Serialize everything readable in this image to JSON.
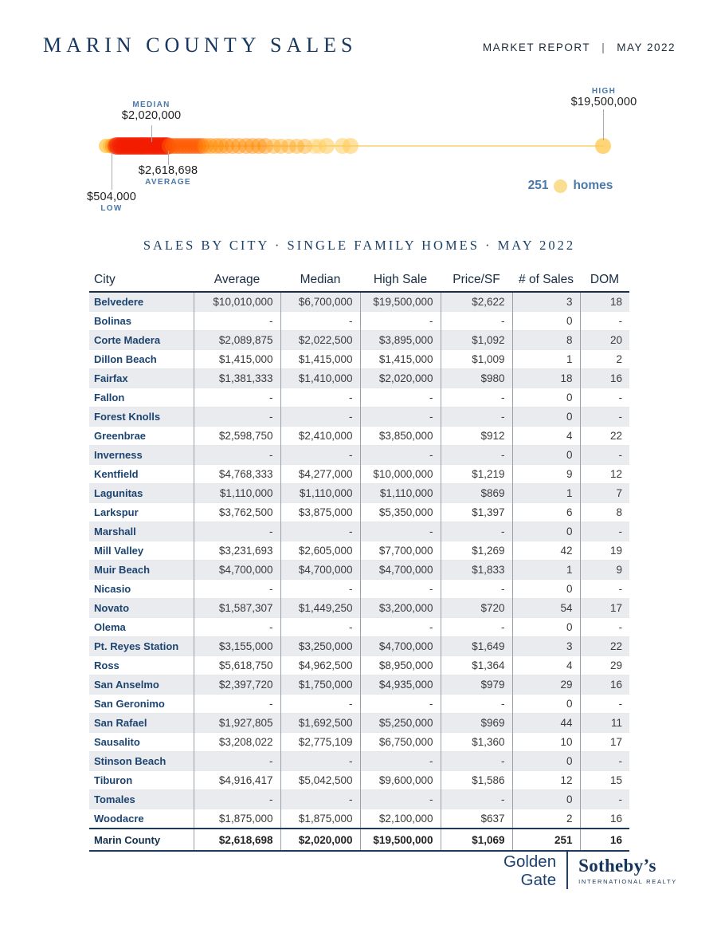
{
  "header": {
    "title": "MARIN COUNTY SALES",
    "report_label": "MARKET REPORT",
    "separator": "|",
    "period": "MAY 2022"
  },
  "chart_data": {
    "type": "strip",
    "x_min": 504000,
    "x_max": 19500000,
    "markers": {
      "median": {
        "label": "MEDIAN",
        "display": "$2,020,000",
        "value": 2020000
      },
      "average": {
        "label": "AVERAGE",
        "display": "$2,618,698",
        "value": 2618698
      },
      "low": {
        "label": "LOW",
        "display": "$504,000",
        "value": 504000
      },
      "high": {
        "label": "HIGH",
        "display": "$19,500,000",
        "value": 19500000
      }
    },
    "legend": {
      "count": "251",
      "label": "homes"
    },
    "dots": [
      [
        504000,
        "gold",
        0.8,
        9
      ],
      [
        650000,
        "amber",
        0.45,
        9
      ],
      [
        780000,
        "orange",
        0.5,
        10
      ],
      [
        900000,
        "red",
        0.5,
        11
      ],
      [
        975000,
        "red",
        0.5,
        11
      ],
      [
        1050000,
        "red",
        0.5,
        11
      ],
      [
        1125000,
        "red",
        0.5,
        11
      ],
      [
        1200000,
        "red",
        0.5,
        11
      ],
      [
        1275000,
        "red",
        0.5,
        11
      ],
      [
        1350000,
        "red",
        0.5,
        11
      ],
      [
        1425000,
        "red",
        0.5,
        11
      ],
      [
        1500000,
        "red",
        0.5,
        11
      ],
      [
        1575000,
        "red",
        0.5,
        11
      ],
      [
        1650000,
        "red",
        0.5,
        11
      ],
      [
        1725000,
        "red",
        0.5,
        11
      ],
      [
        1800000,
        "red",
        0.5,
        11
      ],
      [
        1875000,
        "red",
        0.5,
        11
      ],
      [
        1950000,
        "red",
        0.5,
        11
      ],
      [
        2025000,
        "red",
        0.5,
        11
      ],
      [
        2100000,
        "red",
        0.5,
        11
      ],
      [
        2175000,
        "red",
        0.5,
        11
      ],
      [
        2250000,
        "red",
        0.5,
        11
      ],
      [
        2325000,
        "red",
        0.5,
        11
      ],
      [
        2400000,
        "red",
        0.5,
        11
      ],
      [
        2475000,
        "red",
        0.5,
        11
      ],
      [
        2550000,
        "red",
        0.5,
        11
      ],
      [
        2625000,
        "red",
        0.5,
        11
      ],
      [
        2700000,
        "red",
        0.5,
        11
      ],
      [
        2775000,
        "red",
        0.5,
        11
      ],
      [
        2850000,
        "red",
        0.5,
        11
      ],
      [
        2950000,
        "orangered",
        0.5,
        10
      ],
      [
        3070000,
        "orangered",
        0.5,
        10
      ],
      [
        3190000,
        "orangered",
        0.5,
        10
      ],
      [
        3310000,
        "orangered",
        0.5,
        10
      ],
      [
        3430000,
        "orangered",
        0.5,
        10
      ],
      [
        3550000,
        "orangered",
        0.5,
        10
      ],
      [
        3670000,
        "orangered",
        0.5,
        10
      ],
      [
        3790000,
        "orangered",
        0.5,
        10
      ],
      [
        3910000,
        "orangered",
        0.5,
        10
      ],
      [
        4030000,
        "orangered",
        0.5,
        10
      ],
      [
        4150000,
        "orangered",
        0.5,
        10
      ],
      [
        4300000,
        "orange",
        0.45,
        10
      ],
      [
        4500000,
        "orange",
        0.45,
        10
      ],
      [
        4700000,
        "orange",
        0.45,
        10
      ],
      [
        4900000,
        "orange",
        0.45,
        10
      ],
      [
        5100000,
        "orange",
        0.45,
        10
      ],
      [
        5350000,
        "orange",
        0.45,
        10
      ],
      [
        5600000,
        "orange",
        0.45,
        10
      ],
      [
        5850000,
        "orange",
        0.45,
        10
      ],
      [
        6100000,
        "orange",
        0.45,
        10
      ],
      [
        6350000,
        "orange",
        0.45,
        10
      ],
      [
        6600000,
        "orange",
        0.45,
        10
      ],
      [
        6900000,
        "amber",
        0.45,
        9.5
      ],
      [
        7200000,
        "amber",
        0.45,
        9.5
      ],
      [
        7500000,
        "amber",
        0.45,
        9.5
      ],
      [
        7800000,
        "amber",
        0.45,
        9.5
      ],
      [
        8100000,
        "amber",
        0.45,
        9.5
      ],
      [
        8450000,
        "gold",
        0.4,
        9.5
      ],
      [
        8650000,
        "gold",
        0.4,
        9.5
      ],
      [
        8950000,
        "gold",
        0.55,
        10
      ],
      [
        9550000,
        "gold",
        0.5,
        10
      ],
      [
        9850000,
        "gold",
        0.55,
        10
      ],
      [
        19500000,
        "gold",
        0.8,
        10
      ]
    ]
  },
  "table": {
    "type": "table",
    "title": "SALES BY CITY · SINGLE FAMILY HOMES · MAY 2022",
    "columns": [
      "City",
      "Average",
      "Median",
      "High Sale",
      "Price/SF",
      "# of Sales",
      "DOM"
    ],
    "rows": [
      [
        "Belvedere",
        "$10,010,000",
        "$6,700,000",
        "$19,500,000",
        "$2,622",
        "3",
        "18"
      ],
      [
        "Bolinas",
        "-",
        "-",
        "-",
        "-",
        "0",
        "-"
      ],
      [
        "Corte Madera",
        "$2,089,875",
        "$2,022,500",
        "$3,895,000",
        "$1,092",
        "8",
        "20"
      ],
      [
        "Dillon Beach",
        "$1,415,000",
        "$1,415,000",
        "$1,415,000",
        "$1,009",
        "1",
        "2"
      ],
      [
        "Fairfax",
        "$1,381,333",
        "$1,410,000",
        "$2,020,000",
        "$980",
        "18",
        "16"
      ],
      [
        "Fallon",
        "-",
        "-",
        "-",
        "-",
        "0",
        "-"
      ],
      [
        "Forest Knolls",
        "-",
        "-",
        "-",
        "-",
        "0",
        "-"
      ],
      [
        "Greenbrae",
        "$2,598,750",
        "$2,410,000",
        "$3,850,000",
        "$912",
        "4",
        "22"
      ],
      [
        "Inverness",
        "-",
        "-",
        "-",
        "-",
        "0",
        "-"
      ],
      [
        "Kentfield",
        "$4,768,333",
        "$4,277,000",
        "$10,000,000",
        "$1,219",
        "9",
        "12"
      ],
      [
        "Lagunitas",
        "$1,110,000",
        "$1,110,000",
        "$1,110,000",
        "$869",
        "1",
        "7"
      ],
      [
        "Larkspur",
        "$3,762,500",
        "$3,875,000",
        "$5,350,000",
        "$1,397",
        "6",
        "8"
      ],
      [
        "Marshall",
        "-",
        "-",
        "-",
        "-",
        "0",
        "-"
      ],
      [
        "Mill Valley",
        "$3,231,693",
        "$2,605,000",
        "$7,700,000",
        "$1,269",
        "42",
        "19"
      ],
      [
        "Muir Beach",
        "$4,700,000",
        "$4,700,000",
        "$4,700,000",
        "$1,833",
        "1",
        "9"
      ],
      [
        "Nicasio",
        "-",
        "-",
        "-",
        "-",
        "0",
        "-"
      ],
      [
        "Novato",
        "$1,587,307",
        "$1,449,250",
        "$3,200,000",
        "$720",
        "54",
        "17"
      ],
      [
        "Olema",
        "-",
        "-",
        "-",
        "-",
        "0",
        "-"
      ],
      [
        "Pt. Reyes Station",
        "$3,155,000",
        "$3,250,000",
        "$4,700,000",
        "$1,649",
        "3",
        "22"
      ],
      [
        "Ross",
        "$5,618,750",
        "$4,962,500",
        "$8,950,000",
        "$1,364",
        "4",
        "29"
      ],
      [
        "San Anselmo",
        "$2,397,720",
        "$1,750,000",
        "$4,935,000",
        "$979",
        "29",
        "16"
      ],
      [
        "San Geronimo",
        "-",
        "-",
        "-",
        "-",
        "0",
        "-"
      ],
      [
        "San Rafael",
        "$1,927,805",
        "$1,692,500",
        "$5,250,000",
        "$969",
        "44",
        "11"
      ],
      [
        "Sausalito",
        "$3,208,022",
        "$2,775,109",
        "$6,750,000",
        "$1,360",
        "10",
        "17"
      ],
      [
        "Stinson Beach",
        "-",
        "-",
        "-",
        "-",
        "0",
        "-"
      ],
      [
        "Tiburon",
        "$4,916,417",
        "$5,042,500",
        "$9,600,000",
        "$1,586",
        "12",
        "15"
      ],
      [
        "Tomales",
        "-",
        "-",
        "-",
        "-",
        "0",
        "-"
      ],
      [
        "Woodacre",
        "$1,875,000",
        "$1,875,000",
        "$2,100,000",
        "$637",
        "2",
        "16"
      ]
    ],
    "total": [
      "Marin County",
      "$2,618,698",
      "$2,020,000",
      "$19,500,000",
      "$1,069",
      "251",
      "16"
    ]
  },
  "footer": {
    "brand_line1": "Golden",
    "brand_line2": "Gate",
    "sothebys": "Sotheby’s",
    "sothebys_sub": "INTERNATIONAL REALTY"
  },
  "colors": {
    "accent_steel_blue": "#4a78a8",
    "navy": "#17375e",
    "table_stripe": "#e9ebee",
    "strip_line": "#f6d26b",
    "dot_palette": {
      "red": "#f31b00",
      "orangered": "#ff5a00",
      "orange": "#ff8a00",
      "amber": "#ffa81e",
      "gold": "#ffca55",
      "pale": "#f9dd91"
    }
  }
}
